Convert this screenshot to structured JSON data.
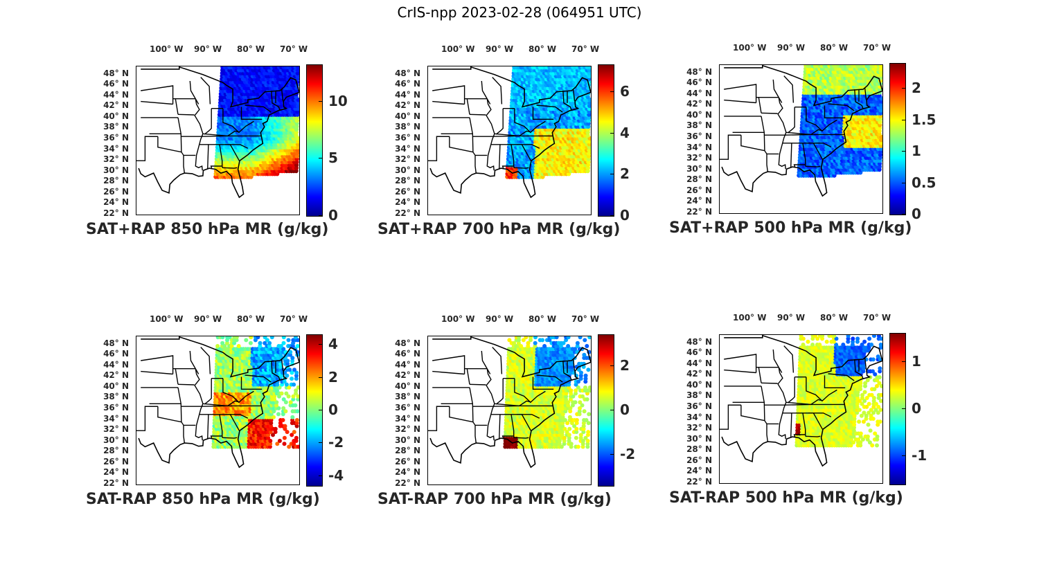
{
  "figure_title": "CrIS-npp 2023-02-28 (064951 UTC)",
  "lon_labels": [
    "100° W",
    "90° W",
    "80° W",
    "70° W"
  ],
  "lat_labels": [
    "48° N",
    "46° N",
    "44° N",
    "42° N",
    "40° N",
    "38° N",
    "36° N",
    "34° N",
    "32° N",
    "30° N",
    "28° N",
    "26° N",
    "24° N",
    "22° N"
  ],
  "colormap": [
    "#00008f",
    "#0000ff",
    "#0080ff",
    "#00ffff",
    "#80ff80",
    "#ffff00",
    "#ff8000",
    "#ff0000",
    "#800000"
  ],
  "panels": [
    {
      "id": "p850sum",
      "title": "SAT+RAP 850 hPa MR (g/kg)",
      "field": "sum",
      "cmin": 0,
      "cmax": 13.2,
      "ticks": [
        "0",
        "5",
        "10"
      ],
      "tick_values": [
        0,
        5,
        10
      ]
    },
    {
      "id": "p700sum",
      "title": "SAT+RAP 700 hPa MR (g/kg)",
      "field": "sum",
      "cmin": 0,
      "cmax": 7.3,
      "ticks": [
        "0",
        "2",
        "4",
        "6"
      ],
      "tick_values": [
        0,
        2,
        4,
        6
      ]
    },
    {
      "id": "p500sum",
      "title": "SAT+RAP 500 hPa MR (g/kg)",
      "field": "sum",
      "cmin": 0,
      "cmax": 2.4,
      "ticks": [
        "0",
        "0.5",
        "1",
        "1.5",
        "2"
      ],
      "tick_values": [
        0,
        0.5,
        1,
        1.5,
        2
      ]
    },
    {
      "id": "p850diff",
      "title": "SAT-RAP 850 hPa MR (g/kg)",
      "field": "diff",
      "cmin": -4.6,
      "cmax": 4.6,
      "ticks": [
        "-4",
        "-2",
        "0",
        "2",
        "4"
      ],
      "tick_values": [
        -4,
        -2,
        0,
        2,
        4
      ]
    },
    {
      "id": "p700diff",
      "title": "SAT-RAP 700 hPa MR (g/kg)",
      "field": "diff",
      "cmin": -3.4,
      "cmax": 3.4,
      "ticks": [
        "-2",
        "0",
        "2"
      ],
      "tick_values": [
        -2,
        0,
        2
      ]
    },
    {
      "id": "p500diff",
      "title": "SAT-RAP 500 hPa MR (g/kg)",
      "field": "diff",
      "cmin": -1.6,
      "cmax": 1.6,
      "ticks": [
        "-1",
        "0",
        "1"
      ],
      "tick_values": [
        -1,
        0,
        1
      ]
    }
  ]
}
